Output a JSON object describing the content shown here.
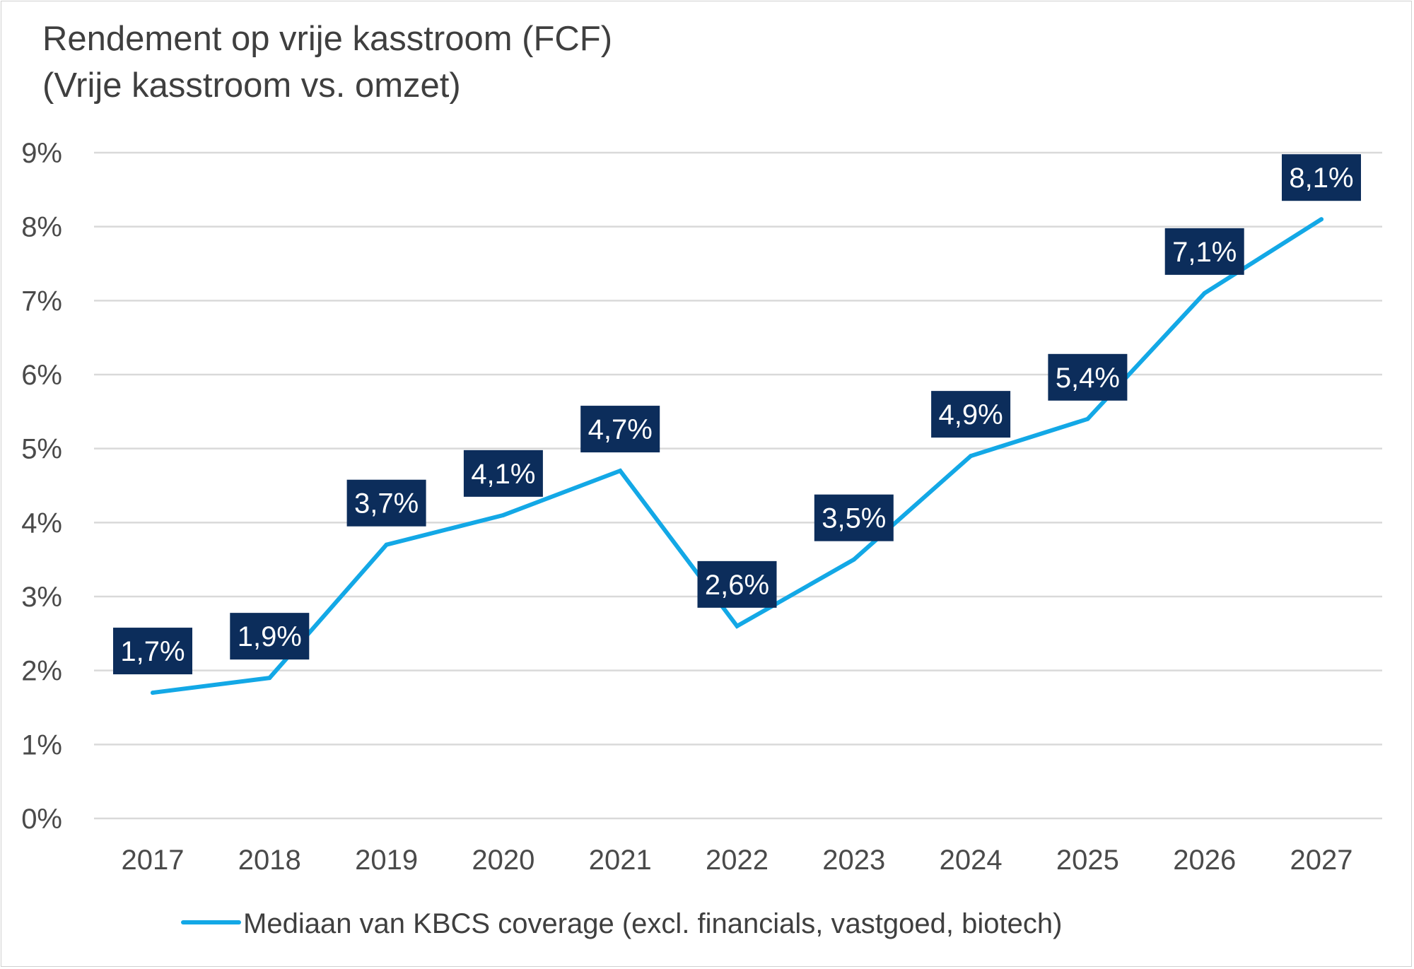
{
  "chart_data": {
    "type": "line",
    "title": "Rendement op vrije kasstroom (FCF)",
    "subtitle": "(Vrije kasstroom vs. omzet)",
    "categories": [
      "2017",
      "2018",
      "2019",
      "2020",
      "2021",
      "2022",
      "2023",
      "2024",
      "2025",
      "2026",
      "2027"
    ],
    "series": [
      {
        "name": "Mediaan van KBCS coverage (excl. financials, vastgoed, biotech)",
        "values": [
          1.7,
          1.9,
          3.7,
          4.1,
          4.7,
          2.6,
          3.5,
          4.9,
          5.4,
          7.1,
          8.1
        ],
        "labels": [
          "1,7%",
          "1,9%",
          "3,7%",
          "4,1%",
          "4,7%",
          "2,6%",
          "3,5%",
          "4,9%",
          "5,4%",
          "7,1%",
          "8,1%"
        ],
        "color": "#13a8e6"
      }
    ],
    "y_ticks": [
      "0%",
      "1%",
      "2%",
      "3%",
      "4%",
      "5%",
      "6%",
      "7%",
      "8%",
      "9%"
    ],
    "ylim": [
      0,
      9
    ],
    "grid": true,
    "legend_position": "bottom",
    "label_box_color": "#0c2d5b",
    "grid_color": "#d9d9d9"
  }
}
